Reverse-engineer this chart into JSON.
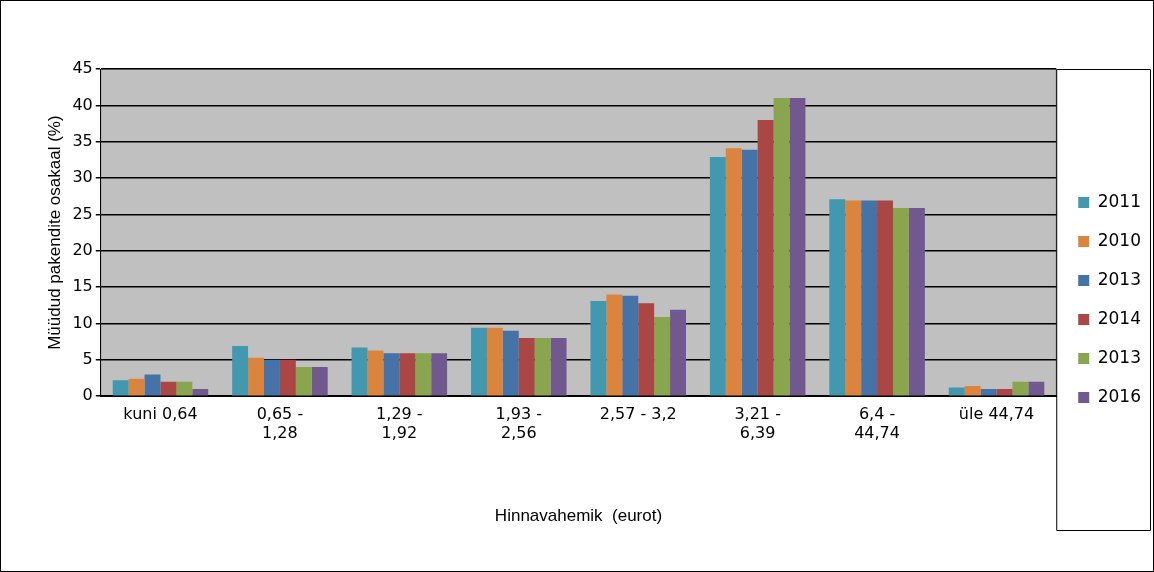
{
  "chart_data": {
    "type": "bar",
    "xlabel": "Hinnavahemik  (eurot)",
    "ylabel": "Müüdud pakendite osakaal (%)",
    "categories": [
      "kuni 0,64",
      "0,65 - 1,28",
      "1,29 - 1,92",
      "1,93 - 2,56",
      "2,57 - 3,2",
      "3,21 - 6,39",
      "6,4 - 44,74",
      "üle 44,74"
    ],
    "series": [
      {
        "name": "2011",
        "color": "#4198af",
        "values": [
          2.2,
          6.9,
          6.7,
          9.4,
          13.1,
          32.9,
          27.1,
          1.2
        ]
      },
      {
        "name": "2010",
        "color": "#db843d",
        "values": [
          2.4,
          5.3,
          6.3,
          9.4,
          14,
          34.1,
          26.9,
          1.4
        ]
      },
      {
        "name": "2013",
        "color": "#4572a7",
        "values": [
          3,
          5,
          5.9,
          9,
          13.8,
          33.9,
          26.9,
          1
        ]
      },
      {
        "name": "2014",
        "color": "#aa4643",
        "values": [
          2,
          5,
          5.9,
          8,
          12.8,
          38,
          26.9,
          1
        ]
      },
      {
        "name": "2013",
        "color": "#89a54e",
        "values": [
          2,
          4,
          5.9,
          8,
          10.9,
          41,
          25.9,
          2
        ]
      },
      {
        "name": "2016",
        "color": "#71588f",
        "values": [
          1,
          4,
          5.9,
          8,
          11.9,
          41,
          25.9,
          2
        ]
      }
    ],
    "ylim": [
      0,
      45
    ],
    "yticks": [
      0,
      5,
      10,
      15,
      20,
      25,
      30,
      35,
      40,
      45
    ],
    "grid": "y",
    "legend": "right"
  }
}
